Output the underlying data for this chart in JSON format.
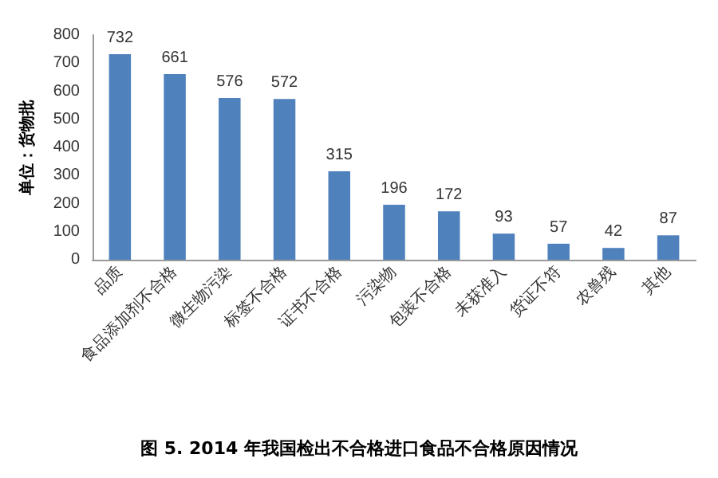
{
  "chart_data": {
    "type": "bar",
    "title": "图 5. 2014 年我国检出不合格进口食品不合格原因情况",
    "ylabel": "单位：货物批",
    "categories": [
      "品质",
      "食品添加剂不合格",
      "微生物污染",
      "标签不合格",
      "证书不合格",
      "污染物",
      "包装不合格",
      "未获准入",
      "货证不符",
      "农兽残",
      "其他"
    ],
    "values": [
      732,
      661,
      576,
      572,
      315,
      196,
      172,
      93,
      57,
      42,
      87
    ],
    "color": "#4f81bd",
    "ylim": [
      0,
      800
    ],
    "yticks": [
      0,
      100,
      200,
      300,
      400,
      500,
      600,
      700,
      800
    ],
    "grid": false,
    "data_labels": true
  }
}
